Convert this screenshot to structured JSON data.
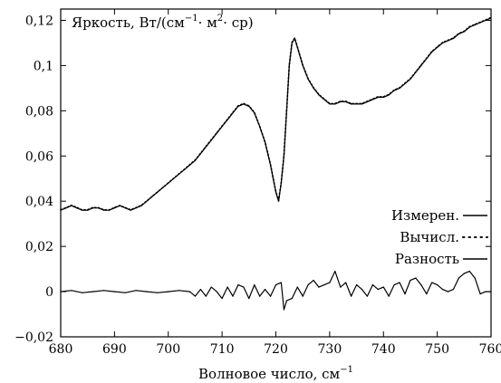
{
  "chart_data": {
    "type": "line",
    "title": "",
    "xlabel": "Волновое число, см",
    "xlabel_sup": "−1",
    "ylabel_parts": [
      "Яркость, Вт/(см",
      "−1",
      "· м",
      "2",
      "· ср)"
    ],
    "xlim": [
      680,
      760
    ],
    "ylim": [
      -0.02,
      0.125
    ],
    "x_ticks": [
      680,
      690,
      700,
      710,
      720,
      730,
      740,
      750,
      760
    ],
    "y_ticks": [
      -0.02,
      0,
      0.02,
      0.04,
      0.06,
      0.08,
      0.1,
      0.12
    ],
    "x_tick_labels": [
      "680",
      "690",
      "700",
      "710",
      "720",
      "730",
      "740",
      "750",
      "760"
    ],
    "y_tick_labels": [
      "−0,02",
      "0",
      "0,02",
      "0,04",
      "0,06",
      "0,08",
      "0,1",
      "0,12"
    ],
    "grid": false,
    "legend_position": "right-middle",
    "series": [
      {
        "name": "Измерен.",
        "style": "solid",
        "x": [
          680,
          681,
          682,
          683,
          684,
          685,
          686,
          687,
          688,
          689,
          690,
          691,
          692,
          693,
          694,
          695,
          696,
          697,
          698,
          699,
          700,
          701,
          702,
          703,
          704,
          705,
          706,
          707,
          708,
          709,
          710,
          711,
          712,
          713,
          714,
          715,
          716,
          717,
          718,
          718.5,
          719,
          719.5,
          720,
          720.5,
          721,
          721.5,
          722,
          722.5,
          723,
          723.5,
          724,
          725,
          726,
          727,
          728,
          729,
          730,
          731,
          732,
          733,
          734,
          735,
          736,
          737,
          738,
          739,
          740,
          741,
          742,
          743,
          744,
          745,
          746,
          747,
          748,
          749,
          750,
          751,
          752,
          753,
          754,
          755,
          756,
          757,
          758,
          759,
          760
        ],
        "y": [
          0.036,
          0.037,
          0.038,
          0.037,
          0.036,
          0.036,
          0.037,
          0.037,
          0.036,
          0.036,
          0.037,
          0.038,
          0.037,
          0.036,
          0.037,
          0.038,
          0.04,
          0.042,
          0.044,
          0.046,
          0.048,
          0.05,
          0.052,
          0.054,
          0.056,
          0.058,
          0.061,
          0.064,
          0.067,
          0.07,
          0.073,
          0.076,
          0.079,
          0.082,
          0.083,
          0.082,
          0.079,
          0.073,
          0.066,
          0.061,
          0.056,
          0.05,
          0.044,
          0.04,
          0.048,
          0.06,
          0.08,
          0.1,
          0.11,
          0.112,
          0.108,
          0.1,
          0.094,
          0.09,
          0.087,
          0.085,
          0.083,
          0.083,
          0.084,
          0.084,
          0.083,
          0.083,
          0.083,
          0.084,
          0.085,
          0.086,
          0.086,
          0.087,
          0.089,
          0.09,
          0.092,
          0.094,
          0.097,
          0.1,
          0.103,
          0.106,
          0.108,
          0.11,
          0.111,
          0.112,
          0.114,
          0.115,
          0.117,
          0.118,
          0.119,
          0.12,
          0.121
        ]
      },
      {
        "name": "Вычисл.",
        "style": "dotted",
        "x": [
          680,
          681,
          682,
          683,
          684,
          685,
          686,
          687,
          688,
          689,
          690,
          691,
          692,
          693,
          694,
          695,
          696,
          697,
          698,
          699,
          700,
          701,
          702,
          703,
          704,
          705,
          706,
          707,
          708,
          709,
          710,
          711,
          712,
          713,
          714,
          715,
          716,
          717,
          718,
          718.5,
          719,
          719.5,
          720,
          720.5,
          721,
          721.5,
          722,
          722.5,
          723,
          723.5,
          724,
          725,
          726,
          727,
          728,
          729,
          730,
          731,
          732,
          733,
          734,
          735,
          736,
          737,
          738,
          739,
          740,
          741,
          742,
          743,
          744,
          745,
          746,
          747,
          748,
          749,
          750,
          751,
          752,
          753,
          754,
          755,
          756,
          757,
          758,
          759,
          760
        ],
        "y": [
          0.0362,
          0.0371,
          0.0382,
          0.0372,
          0.0361,
          0.0362,
          0.0372,
          0.0371,
          0.0362,
          0.0361,
          0.0372,
          0.0381,
          0.0371,
          0.0362,
          0.0371,
          0.0382,
          0.0401,
          0.0421,
          0.0441,
          0.0461,
          0.0481,
          0.0501,
          0.0521,
          0.0541,
          0.0562,
          0.0582,
          0.0612,
          0.0642,
          0.0672,
          0.0702,
          0.0732,
          0.0762,
          0.0792,
          0.0822,
          0.0832,
          0.0822,
          0.0792,
          0.0731,
          0.0661,
          0.0611,
          0.0562,
          0.0502,
          0.0442,
          0.0402,
          0.0482,
          0.0602,
          0.0802,
          0.1002,
          0.1102,
          0.1122,
          0.1082,
          0.1002,
          0.0942,
          0.0902,
          0.0872,
          0.0852,
          0.0832,
          0.0832,
          0.0842,
          0.0842,
          0.0832,
          0.0832,
          0.0832,
          0.0842,
          0.0852,
          0.0862,
          0.0862,
          0.0872,
          0.0892,
          0.0902,
          0.0922,
          0.0942,
          0.0972,
          0.1002,
          0.1032,
          0.1062,
          0.1082,
          0.1102,
          0.1112,
          0.1122,
          0.1142,
          0.1152,
          0.1172,
          0.1182,
          0.1192,
          0.1202,
          0.1212
        ]
      },
      {
        "name": "Разность",
        "style": "solid",
        "x": [
          680,
          682,
          684,
          686,
          688,
          690,
          692,
          694,
          696,
          698,
          700,
          702,
          704,
          705,
          706,
          707,
          708,
          709,
          710,
          711,
          712,
          713,
          714,
          715,
          716,
          717,
          718,
          719,
          720,
          721,
          721.5,
          722,
          723,
          724,
          725,
          726,
          727,
          728,
          729,
          730,
          731,
          732,
          733,
          734,
          735,
          736,
          737,
          738,
          739,
          740,
          741,
          742,
          743,
          744,
          745,
          746,
          747,
          748,
          749,
          750,
          751,
          752,
          753,
          754,
          755,
          756,
          757,
          758,
          759,
          760
        ],
        "y": [
          0.0,
          0.0005,
          -0.0005,
          0.0,
          0.0005,
          0.0,
          -0.0005,
          0.0005,
          0.0,
          -0.0005,
          0.0,
          0.0005,
          0.0,
          -0.002,
          0.001,
          -0.002,
          0.002,
          0.0,
          -0.003,
          0.002,
          -0.002,
          0.003,
          0.002,
          -0.003,
          0.003,
          -0.002,
          0.001,
          -0.002,
          0.003,
          0.004,
          -0.008,
          -0.004,
          -0.003,
          0.002,
          -0.002,
          0.003,
          0.005,
          0.002,
          0.003,
          0.004,
          0.009,
          0.002,
          0.004,
          -0.002,
          0.003,
          0.001,
          -0.002,
          0.003,
          0.001,
          0.002,
          -0.002,
          0.003,
          0.004,
          -0.001,
          0.005,
          0.006,
          0.003,
          -0.001,
          0.004,
          0.003,
          0.001,
          0.0,
          0.001,
          0.006,
          0.008,
          0.009,
          0.006,
          -0.001,
          0.0,
          0.0
        ]
      }
    ]
  }
}
